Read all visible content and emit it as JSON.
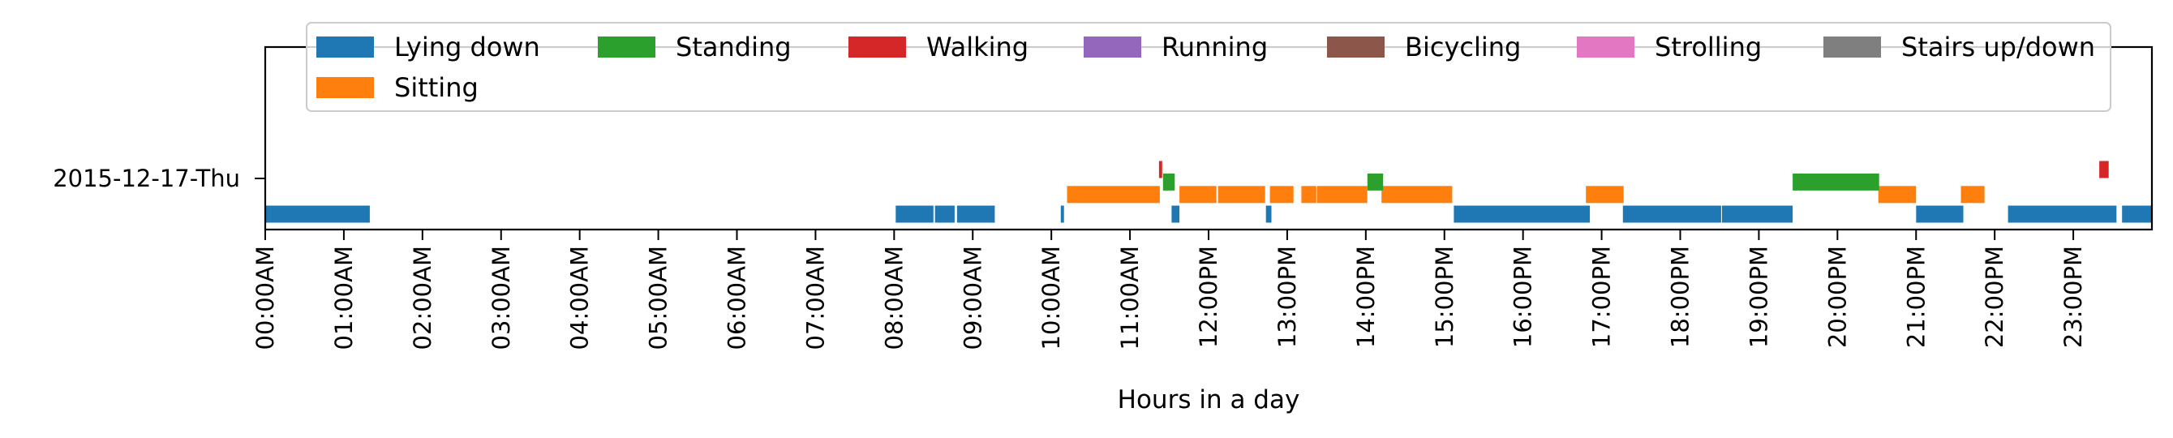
{
  "chart_data": {
    "type": "bar",
    "orientation": "horizontal-timeline",
    "title": "",
    "xlabel": "Hours in a day",
    "ylabel": "",
    "xlim": [
      0,
      24
    ],
    "day_label": "2015-12-17-Thu",
    "x_ticks": [
      "00:00AM",
      "01:00AM",
      "02:00AM",
      "03:00AM",
      "04:00AM",
      "05:00AM",
      "06:00AM",
      "07:00AM",
      "08:00AM",
      "09:00AM",
      "10:00AM",
      "11:00AM",
      "12:00PM",
      "13:00PM",
      "14:00PM",
      "15:00PM",
      "16:00PM",
      "17:00PM",
      "18:00PM",
      "19:00PM",
      "20:00PM",
      "21:00PM",
      "22:00PM",
      "23:00PM"
    ],
    "legend_position": "top",
    "series": [
      {
        "name": "Lying down",
        "color": "#1f77b4",
        "level": 0,
        "segments": [
          [
            0.0,
            1.33
          ],
          [
            8.02,
            8.5
          ],
          [
            8.52,
            8.77
          ],
          [
            8.8,
            9.28
          ],
          [
            10.12,
            10.16
          ],
          [
            11.53,
            11.63
          ],
          [
            12.73,
            12.8
          ],
          [
            15.12,
            16.85
          ],
          [
            17.27,
            18.52
          ],
          [
            18.53,
            19.43
          ],
          [
            21.0,
            21.6
          ],
          [
            22.17,
            23.55
          ],
          [
            23.62,
            24.0
          ]
        ]
      },
      {
        "name": "Sitting",
        "color": "#ff7f0e",
        "level": 0.55,
        "segments": [
          [
            10.2,
            11.38
          ],
          [
            11.63,
            12.1
          ],
          [
            12.12,
            12.72
          ],
          [
            12.78,
            13.08
          ],
          [
            13.18,
            13.37
          ],
          [
            13.38,
            14.02
          ],
          [
            14.2,
            15.1
          ],
          [
            16.8,
            17.28
          ],
          [
            20.52,
            21.0
          ],
          [
            21.57,
            21.87
          ]
        ]
      },
      {
        "name": "Standing",
        "color": "#2ca02c",
        "level": 0.9,
        "segments": [
          [
            11.42,
            11.57
          ],
          [
            14.02,
            14.22
          ],
          [
            19.43,
            20.53
          ]
        ]
      },
      {
        "name": "Walking",
        "color": "#d62728",
        "level": 1.25,
        "segments": [
          [
            11.37,
            11.41
          ],
          [
            23.33,
            23.45
          ]
        ]
      },
      {
        "name": "Running",
        "color": "#9467bd",
        "level": 1.25,
        "segments": []
      },
      {
        "name": "Bicycling",
        "color": "#8c564b",
        "level": 1.25,
        "segments": []
      },
      {
        "name": "Strolling",
        "color": "#e377c2",
        "level": 1.25,
        "segments": []
      },
      {
        "name": "Stairs up/down",
        "color": "#7f7f7f",
        "level": 1.25,
        "segments": []
      }
    ]
  }
}
